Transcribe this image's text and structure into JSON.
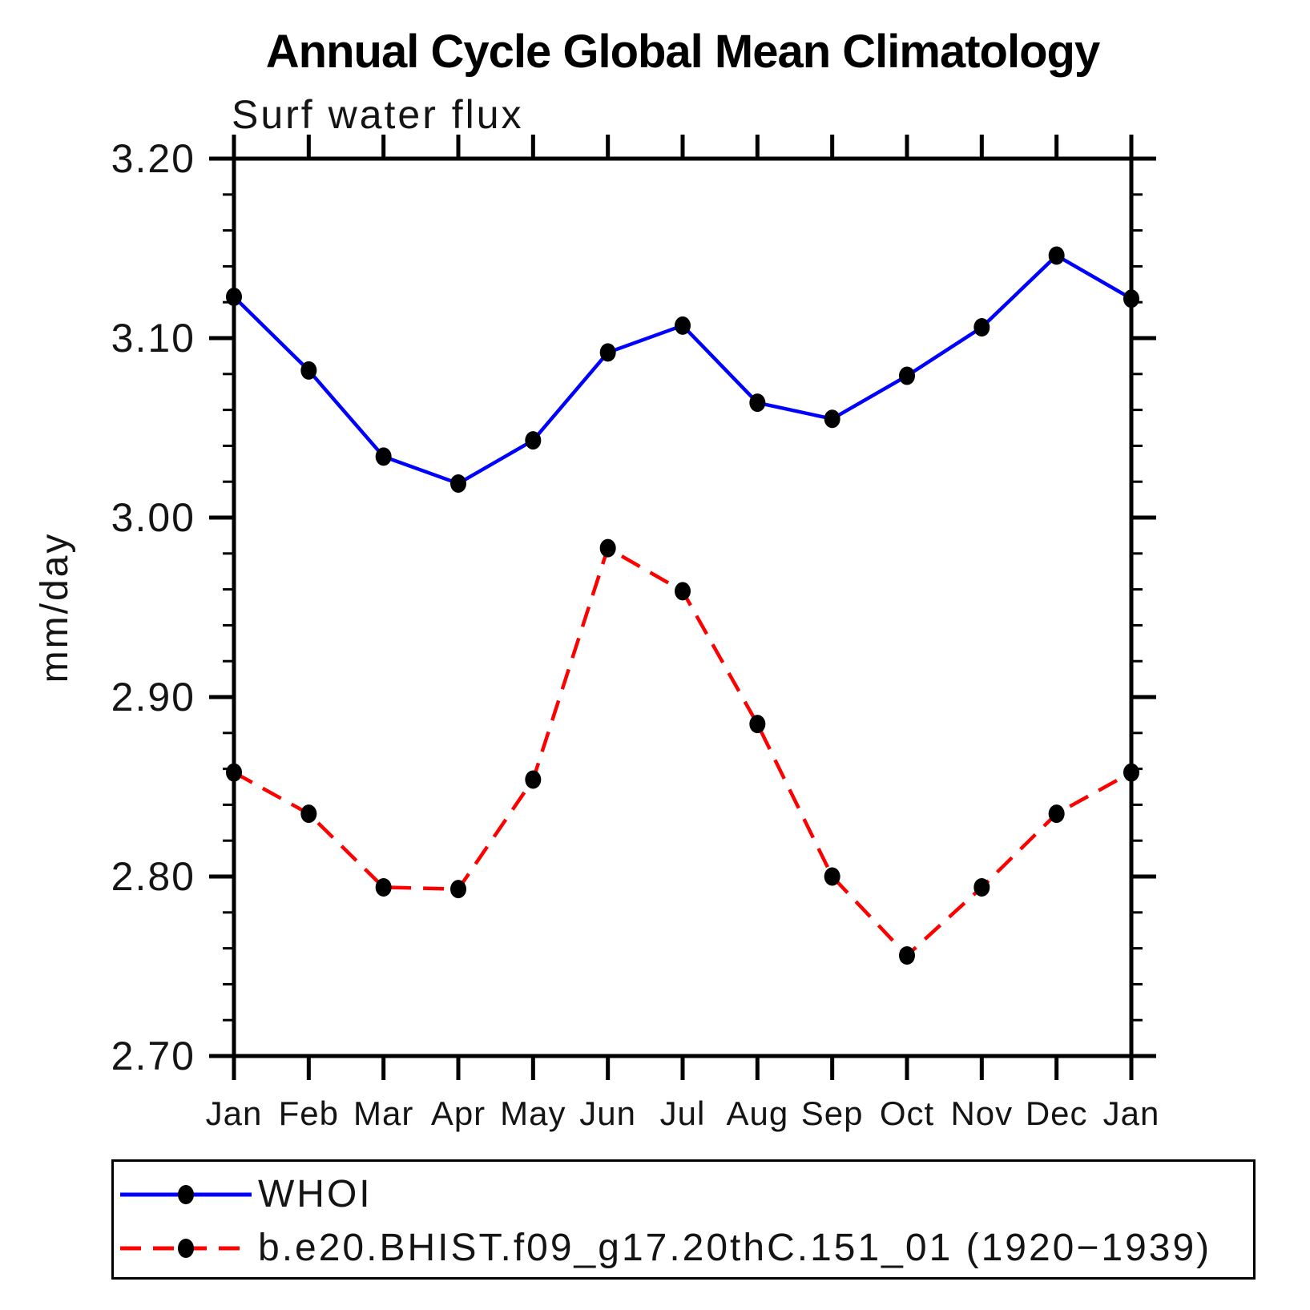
{
  "title": "Annual Cycle Global Mean Climatology",
  "subtitle": "Surf water flux",
  "chart_data": {
    "type": "line",
    "title": "Annual Cycle Global Mean Climatology",
    "subtitle": "Surf water flux",
    "x_categories": [
      "Jan",
      "Feb",
      "Mar",
      "Apr",
      "May",
      "Jun",
      "Jul",
      "Aug",
      "Sep",
      "Oct",
      "Nov",
      "Dec",
      "Jan"
    ],
    "ylabel": "mm/day",
    "ylim": [
      2.7,
      3.2
    ],
    "ytick_major_step": 0.1,
    "ytick_minor_step": 0.02,
    "ytick_labels": [
      "3.20",
      "3.10",
      "3.00",
      "2.90",
      "2.80",
      "2.70"
    ],
    "grid": false,
    "legend_position": "bottom-box",
    "series": [
      {
        "name": "WHOI",
        "line_color": "#0000ff",
        "line_style": "solid",
        "marker": "filled-circle",
        "marker_color": "#000000",
        "values": [
          3.123,
          3.082,
          3.034,
          3.019,
          3.043,
          3.092,
          3.107,
          3.064,
          3.055,
          3.079,
          3.106,
          3.146,
          3.122
        ]
      },
      {
        "name": "b.e20.BHIST.f09_g17.20thC.151_01 (1920−1939)",
        "line_color": "#ff0000",
        "line_style": "dashed",
        "marker": "filled-circle",
        "marker_color": "#000000",
        "values": [
          2.858,
          2.835,
          2.794,
          2.793,
          2.854,
          2.983,
          2.959,
          2.885,
          2.8,
          2.756,
          2.794,
          2.835,
          2.858
        ]
      }
    ]
  },
  "colors": {
    "axis": "#000000",
    "whoi_line": "#0000ff",
    "model_line": "#ff0000",
    "marker": "#000000"
  }
}
